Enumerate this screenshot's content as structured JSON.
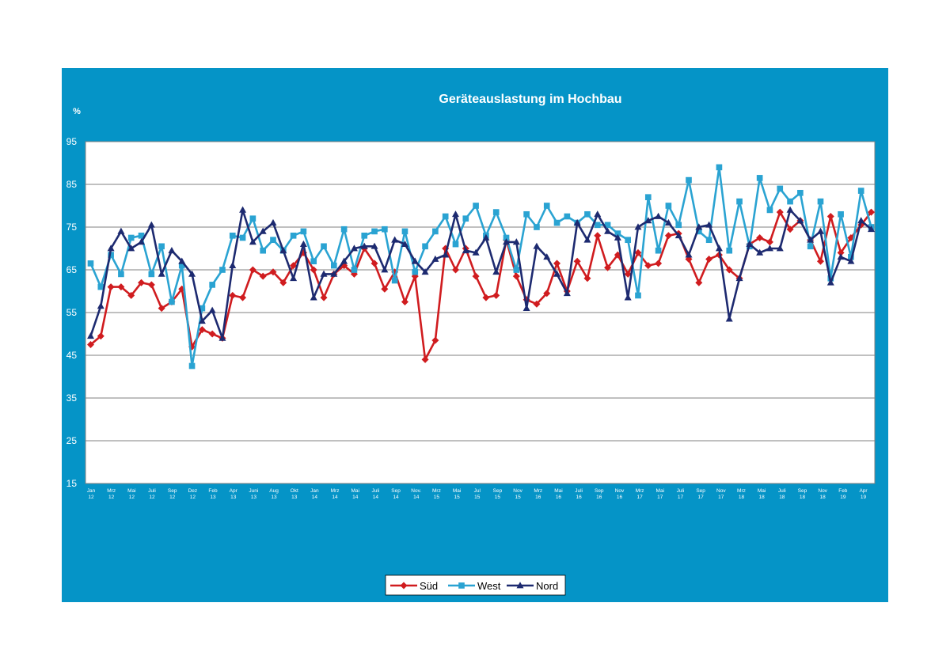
{
  "chart_data": {
    "type": "line",
    "title": "Geräteauslastung im Hochbau",
    "ylabel": "%",
    "ylim": [
      15,
      95
    ],
    "yticks": [
      15,
      25,
      35,
      45,
      55,
      65,
      75,
      85,
      95
    ],
    "grid": true,
    "legend_position": "bottom-center",
    "xtick_labels": [
      [
        "Jan",
        "12"
      ],
      [
        "Mrz",
        "12"
      ],
      [
        "Mai",
        "12"
      ],
      [
        "Juli",
        "12"
      ],
      [
        "Sep",
        "12"
      ],
      [
        "Dez",
        "12"
      ],
      [
        "Feb",
        "13"
      ],
      [
        "Apr",
        "13"
      ],
      [
        "Juni",
        "13"
      ],
      [
        "Aug",
        "13"
      ],
      [
        "Okt",
        "13"
      ],
      [
        "Jan",
        "14"
      ],
      [
        "Mrz",
        "14"
      ],
      [
        "Mai",
        "14"
      ],
      [
        "Juli",
        "14"
      ],
      [
        "Sep",
        "14"
      ],
      [
        "Nov.",
        "14"
      ],
      [
        "Mrz",
        "15"
      ],
      [
        "Mai",
        "15"
      ],
      [
        "Jul",
        "15"
      ],
      [
        "Sep",
        "15"
      ],
      [
        "Nov",
        "15"
      ],
      [
        "Mrz",
        "16"
      ],
      [
        "Mai",
        "16"
      ],
      [
        "Juli",
        "16"
      ],
      [
        "Sep",
        "16"
      ],
      [
        "Nov",
        "16"
      ],
      [
        "Mrz",
        "17"
      ],
      [
        "Mai",
        "17"
      ],
      [
        "Juli",
        "17"
      ],
      [
        "Sep",
        "17"
      ],
      [
        "Nov",
        "17"
      ],
      [
        "Mrz",
        "18"
      ],
      [
        "Mai",
        "18"
      ],
      [
        "Juli",
        "18"
      ],
      [
        "Sep",
        "18"
      ],
      [
        "Nov",
        "18"
      ],
      [
        "Feb",
        "19"
      ],
      [
        "Apr",
        "19"
      ]
    ],
    "series": [
      {
        "name": "Süd",
        "color": "#d01c1f",
        "marker": "diamond",
        "values": [
          47.5,
          49.5,
          61,
          61,
          59,
          62,
          61.5,
          56,
          57.5,
          60.5,
          47,
          51,
          50,
          49,
          59,
          58.5,
          65,
          63.5,
          64.5,
          62,
          66,
          69,
          65,
          58.5,
          64,
          66,
          64,
          70,
          66.5,
          60.5,
          64.5,
          57.5,
          63.5,
          44,
          48.5,
          70,
          65,
          70,
          63.5,
          58.5,
          59,
          72,
          63.5,
          58,
          57,
          59.5,
          66.5,
          60,
          67,
          63,
          73,
          65.5,
          68.5,
          64,
          69,
          66,
          66.5,
          73,
          73.5,
          67.5,
          62,
          67.5,
          68.5,
          65,
          63,
          71,
          72.5,
          71.5,
          78.5,
          74.5,
          76.5,
          72,
          67,
          77.5,
          69,
          72.5,
          75.5,
          78.5
        ]
      },
      {
        "name": "West",
        "color": "#2aa3d2",
        "marker": "square",
        "values": [
          66.5,
          61,
          68.5,
          64,
          72.5,
          73,
          64,
          70.5,
          57.5,
          66,
          42.5,
          56,
          61.5,
          65,
          73,
          72.5,
          77,
          69.5,
          72,
          69.5,
          73,
          74,
          67,
          70.5,
          66,
          74.5,
          65,
          73,
          74,
          74.5,
          62.5,
          74,
          64.5,
          70.5,
          74,
          77.5,
          71,
          77,
          80,
          73,
          78.5,
          72.5,
          65,
          78,
          75,
          80,
          76,
          77.5,
          76,
          78,
          75.5,
          75.5,
          73.5,
          72,
          59,
          82,
          69.5,
          80,
          75.5,
          86,
          74,
          72,
          89,
          69.5,
          81,
          70.5,
          86.5,
          79,
          84,
          81,
          83,
          70.5,
          81,
          63,
          78,
          68,
          83.5,
          75
        ]
      },
      {
        "name": "Nord",
        "color": "#1d2a70",
        "marker": "triangle",
        "values": [
          49.5,
          56.5,
          70,
          74,
          70,
          71.5,
          75.5,
          64,
          69.5,
          67,
          64,
          53,
          55.5,
          49,
          66,
          79,
          71.5,
          74,
          76,
          69.5,
          63,
          71,
          58.5,
          64,
          64,
          67,
          70,
          70.5,
          70.5,
          65,
          72,
          71,
          67,
          64.5,
          67.5,
          68.5,
          78,
          69.5,
          69,
          72.5,
          64.5,
          71.5,
          71.5,
          56,
          70.5,
          68,
          64,
          59.5,
          76,
          72,
          78,
          74,
          72.5,
          58.5,
          75,
          76.5,
          77.5,
          76,
          73,
          68.5,
          75,
          75.5,
          70,
          53.5,
          63,
          71,
          69,
          70,
          70,
          79,
          76.5,
          72,
          74,
          62,
          68,
          67,
          76.5,
          74.5
        ]
      }
    ]
  }
}
